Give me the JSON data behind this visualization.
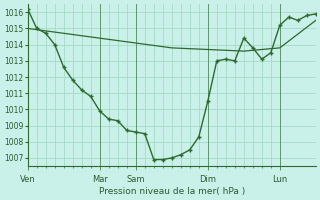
{
  "bg_color": "#caf0ea",
  "grid_color": "#aaddcc",
  "line_color": "#2d6a2d",
  "marker_color": "#2d6a2d",
  "ylabel": "Pression niveau de la mer( hPa )",
  "ylim": [
    1006.5,
    1016.5
  ],
  "yticks": [
    1007,
    1008,
    1009,
    1010,
    1011,
    1012,
    1013,
    1014,
    1015,
    1016
  ],
  "day_labels": [
    "Ven",
    "Mar",
    "Sam",
    "Dim",
    "Lun"
  ],
  "day_positions": [
    0,
    48,
    72,
    120,
    168
  ],
  "minor_tick_positions": [
    0,
    6,
    12,
    18,
    24,
    30,
    36,
    42,
    48,
    54,
    60,
    66,
    72,
    78,
    84,
    90,
    96,
    102,
    108,
    114,
    120,
    126,
    132,
    138,
    144,
    150,
    156,
    162,
    168
  ],
  "xlim": [
    0,
    192
  ],
  "line1_x": [
    0,
    6,
    12,
    18,
    24,
    30,
    36,
    42,
    48,
    54,
    60,
    66,
    72,
    78,
    84,
    90,
    96,
    102,
    108,
    114,
    120,
    126,
    132,
    138,
    144,
    150,
    156,
    162,
    168,
    174,
    180,
    186,
    192
  ],
  "line1_y": [
    1016.2,
    1015.0,
    1014.7,
    1014.0,
    1012.6,
    1011.8,
    1011.2,
    1010.8,
    1009.9,
    1009.4,
    1009.3,
    1008.7,
    1008.6,
    1008.5,
    1006.9,
    1006.9,
    1007.0,
    1007.2,
    1007.5,
    1008.3,
    1010.5,
    1013.0,
    1013.1,
    1013.0,
    1014.4,
    1013.8,
    1013.1,
    1013.5,
    1015.2,
    1015.7,
    1015.5,
    1015.8,
    1015.9
  ],
  "line2_x": [
    0,
    24,
    48,
    72,
    96,
    120,
    144,
    168,
    192
  ],
  "line2_y": [
    1015.0,
    1014.7,
    1014.4,
    1014.1,
    1013.8,
    1013.7,
    1013.6,
    1013.8,
    1015.5
  ]
}
